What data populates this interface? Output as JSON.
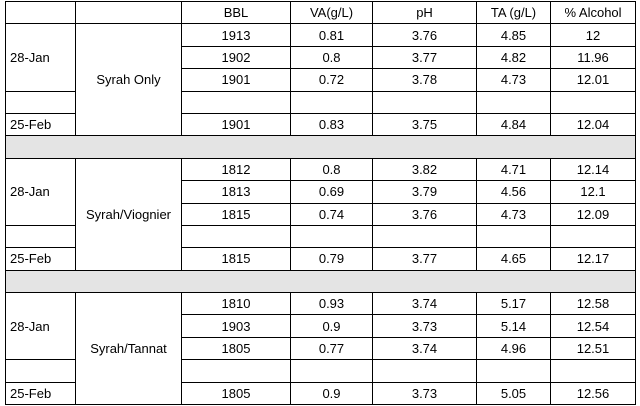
{
  "header": [
    "BBL",
    "VA(g/L)",
    "pH",
    "TA (g/L)",
    "% Alcohol"
  ],
  "groups": [
    {
      "label": "Syrah Only",
      "first_date": "28-Jan",
      "last_date": "25-Feb",
      "rows": [
        [
          1913,
          0.81,
          3.76,
          4.85,
          12
        ],
        [
          1902,
          0.8,
          3.77,
          4.82,
          11.96
        ],
        [
          1901,
          0.72,
          3.78,
          4.73,
          12.01
        ]
      ],
      "last_row": [
        1901,
        0.83,
        3.75,
        4.84,
        12.04
      ]
    },
    {
      "label": "Syrah/Viognier",
      "first_date": "28-Jan",
      "last_date": "25-Feb",
      "rows": [
        [
          1812,
          0.8,
          3.82,
          4.71,
          12.14
        ],
        [
          1813,
          0.69,
          3.79,
          4.56,
          12.1
        ],
        [
          1815,
          0.74,
          3.76,
          4.73,
          12.09
        ]
      ],
      "last_row": [
        1815,
        0.79,
        3.77,
        4.65,
        12.17
      ]
    },
    {
      "label": "Syrah/Tannat",
      "first_date": "28-Jan",
      "last_date": "25-Feb",
      "rows": [
        [
          1810,
          0.93,
          3.74,
          5.17,
          12.58
        ],
        [
          1903,
          0.9,
          3.73,
          5.14,
          12.54
        ],
        [
          1805,
          0.77,
          3.74,
          4.96,
          12.51
        ]
      ],
      "last_row": [
        1805,
        0.9,
        3.73,
        5.05,
        12.56
      ]
    }
  ]
}
